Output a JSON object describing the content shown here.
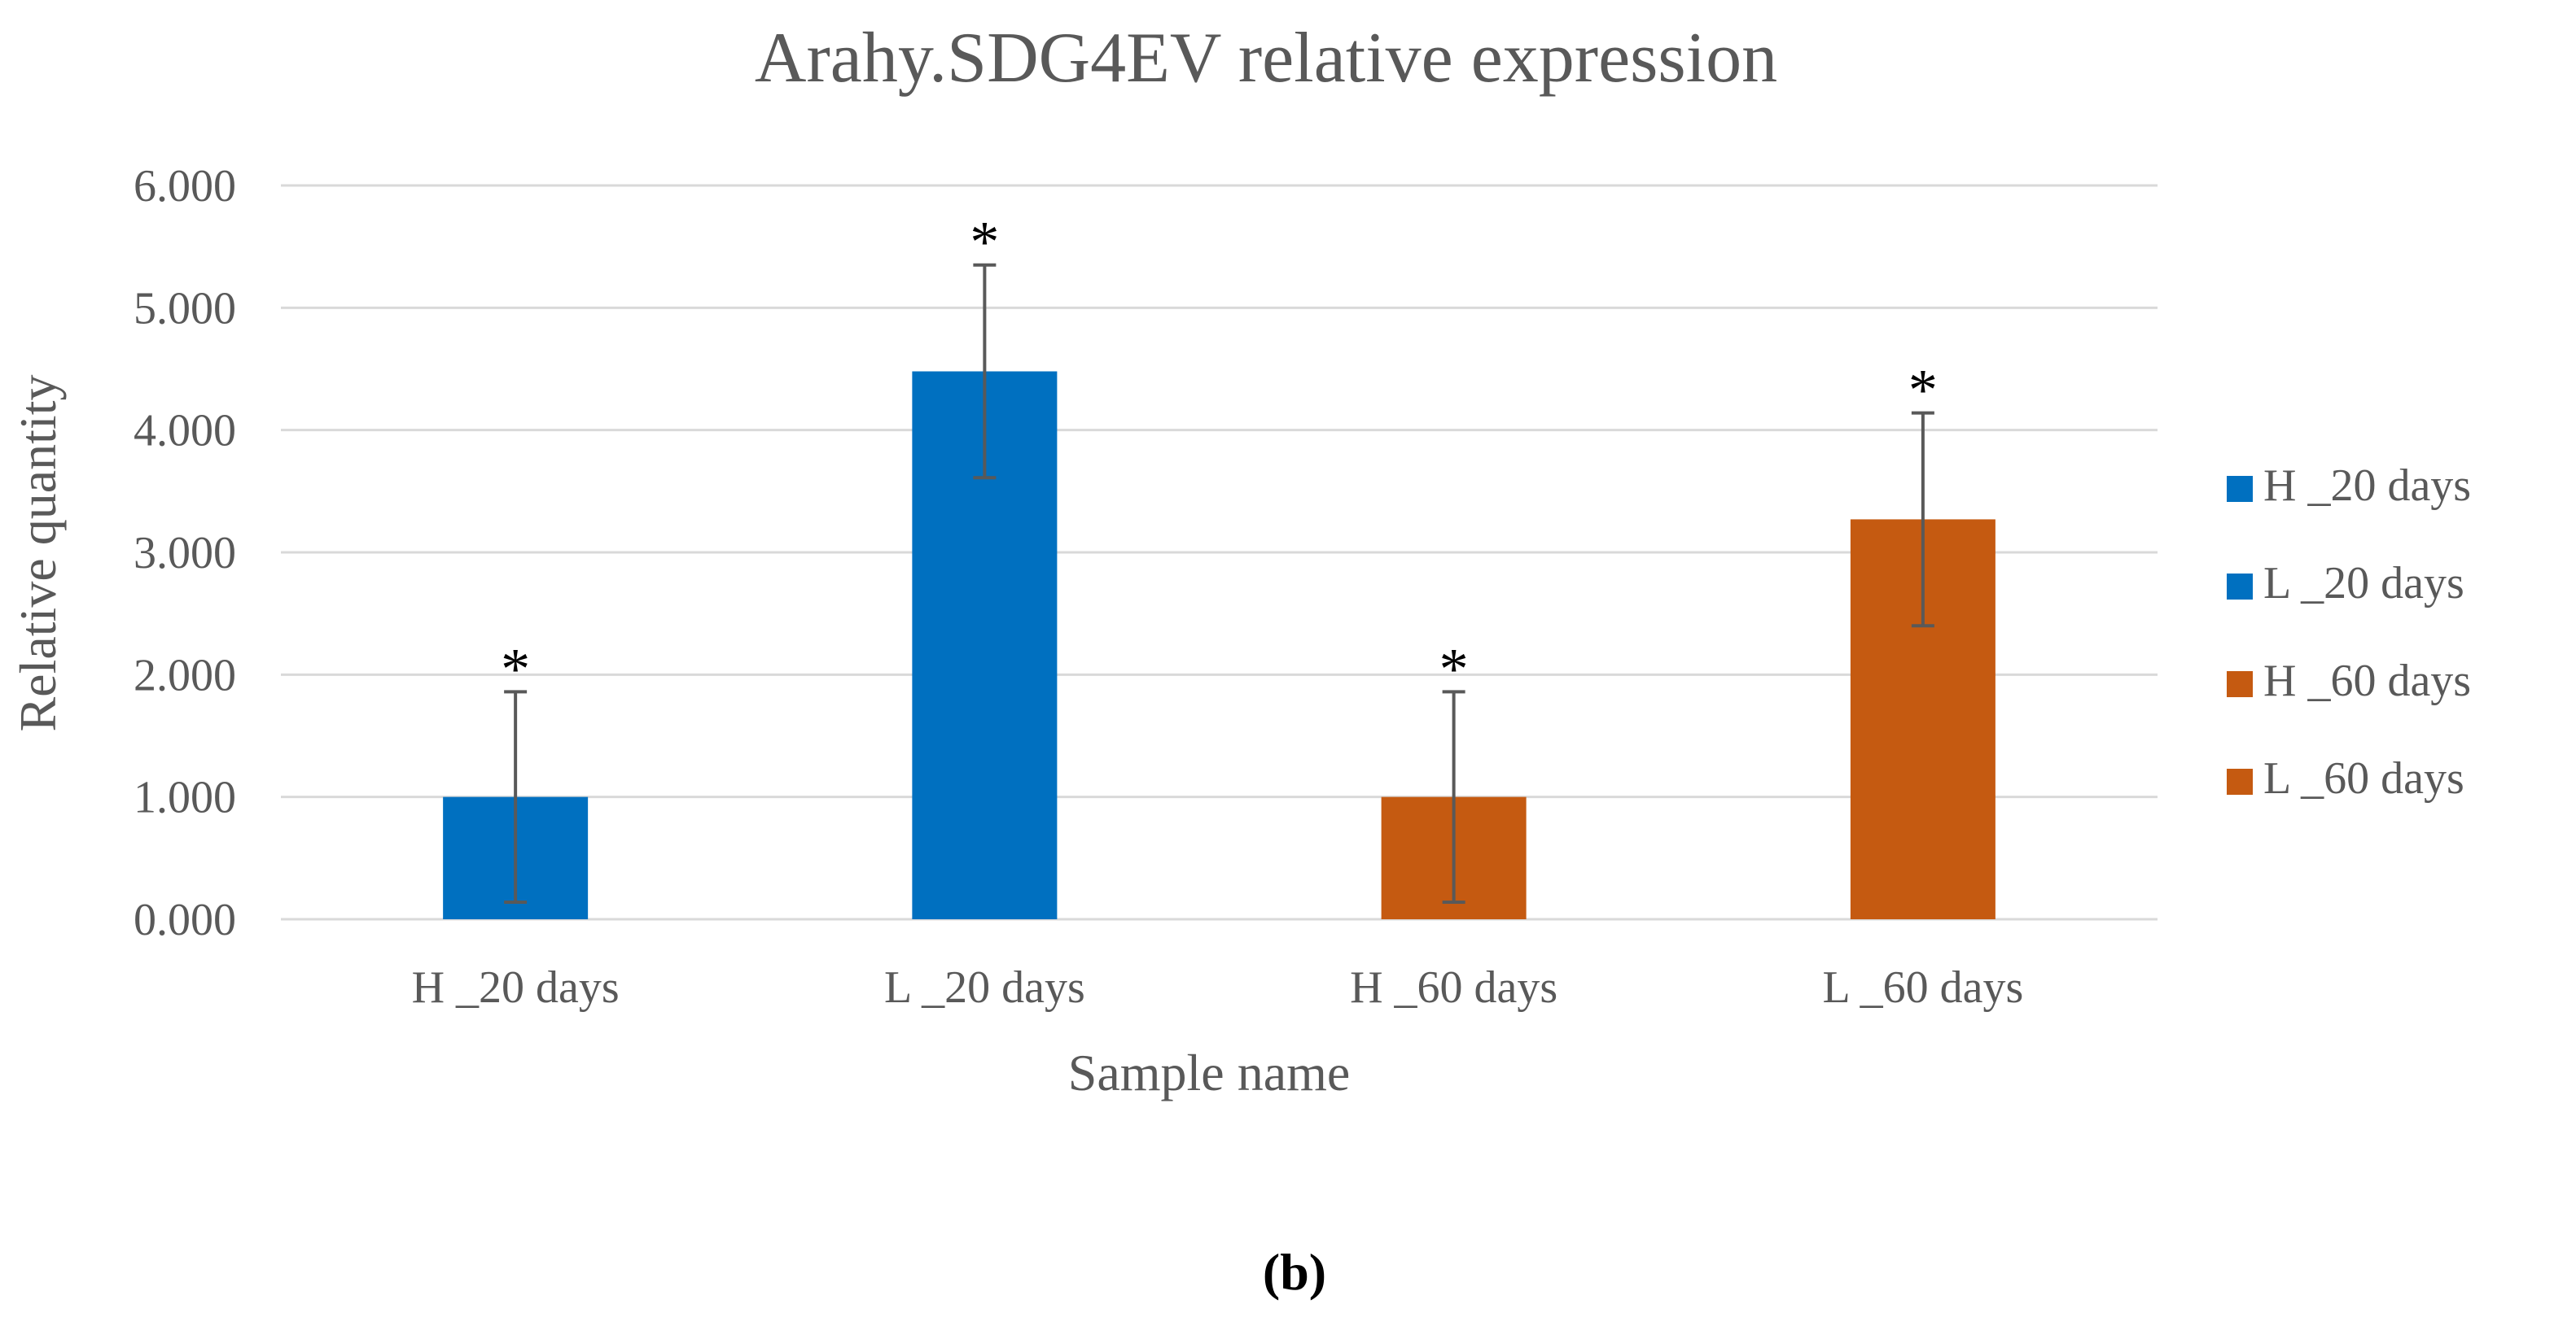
{
  "chart_data": {
    "type": "bar",
    "title": "Arahy.SDG4EV relative expression",
    "xlabel": "Sample name",
    "ylabel": "Relative quantity",
    "ylim": [
      0,
      6
    ],
    "yticks": [
      "0.000",
      "1.000",
      "2.000",
      "3.000",
      "4.000",
      "5.000",
      "6.000"
    ],
    "grid": true,
    "legend_position": "right",
    "categories": [
      "H _20 days",
      "L _20 days",
      "H _60 days",
      "L _60 days"
    ],
    "values": [
      1.0,
      4.48,
      1.0,
      3.27
    ],
    "errors": [
      0.86,
      0.87,
      0.86,
      0.87
    ],
    "annotations": [
      "*",
      "*",
      "*",
      "*"
    ],
    "colors": [
      "#0070C0",
      "#0070C0",
      "#C55A11",
      "#C55A11"
    ],
    "legend": [
      {
        "label": "H _20 days",
        "color": "#0070C0"
      },
      {
        "label": "L _20 days",
        "color": "#0070C0"
      },
      {
        "label": "H _60 days",
        "color": "#C55A11"
      },
      {
        "label": "L _60 days",
        "color": "#C55A11"
      }
    ]
  },
  "panel_label": "(b)"
}
